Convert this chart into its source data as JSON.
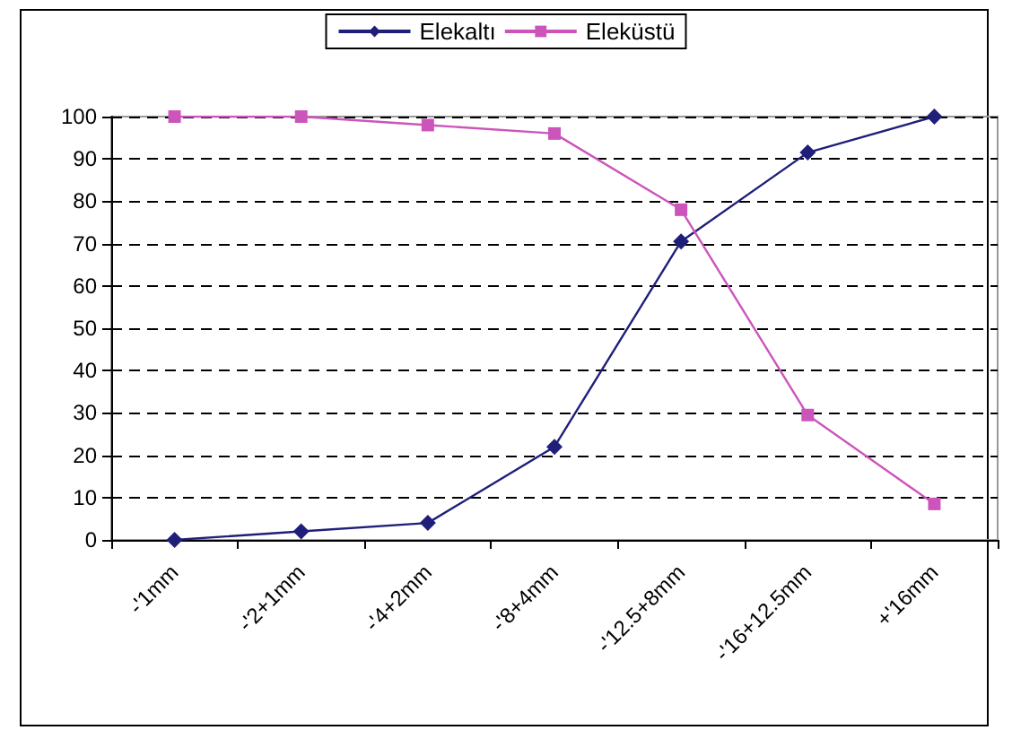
{
  "chart_data": {
    "type": "line",
    "categories": [
      "-'1mm",
      "-'2+1mm",
      "-'4+2mm",
      "-'8+4mm",
      "-'12.5+8mm",
      "-'16+12.5mm",
      "+'16mm"
    ],
    "series": [
      {
        "name": "Elekaltı",
        "color": "#1f1f7a",
        "marker": "diamond",
        "values": [
          0,
          2,
          4,
          22,
          70.5,
          91.5,
          100
        ]
      },
      {
        "name": "Eleküstü",
        "color": "#cc55bb",
        "marker": "square",
        "values": [
          100,
          100,
          98,
          96,
          78,
          29.5,
          8.5
        ]
      }
    ],
    "ylim": [
      0,
      100
    ],
    "yticks": [
      0,
      10,
      20,
      30,
      40,
      50,
      60,
      70,
      80,
      90,
      100
    ],
    "grid": "y",
    "legend": "top",
    "line_style": "solid"
  }
}
